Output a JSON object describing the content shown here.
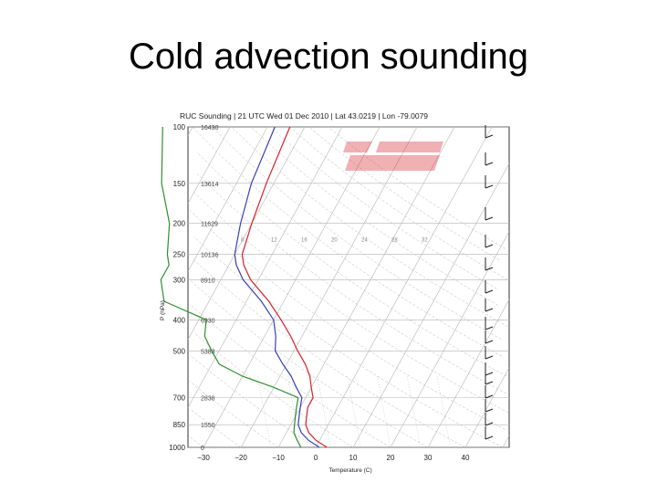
{
  "slide": {
    "title": "Cold advection sounding"
  },
  "chart_data": {
    "type": "line",
    "title": "RUC Sounding | 21 UTC Wed 01 Dec 2010 | Lat 43.0219 | Lon -79.0079",
    "xlabel": "Temperature (C)",
    "ylabel": "P (hPa)",
    "x_ticks": [
      "-30",
      "-20",
      "-10",
      "0",
      "10",
      "20",
      "30",
      "40"
    ],
    "xlim": [
      -32,
      46
    ],
    "ylim": [
      1000,
      100
    ],
    "y_log_scale": true,
    "skew": true,
    "pressure_levels": [
      {
        "p": 100,
        "label": "100",
        "height": "16430"
      },
      {
        "p": 150,
        "label": "150",
        "height": "13614"
      },
      {
        "p": 200,
        "label": "200",
        "height": "11629"
      },
      {
        "p": 250,
        "label": "250",
        "height": "10136"
      },
      {
        "p": 300,
        "label": "300",
        "height": "8910"
      },
      {
        "p": 400,
        "label": "400",
        "height": "6930"
      },
      {
        "p": 500,
        "label": "500",
        "height": "5383"
      },
      {
        "p": 700,
        "label": "700",
        "height": "2838"
      },
      {
        "p": 850,
        "label": "850",
        "height": "1550"
      },
      {
        "p": 1000,
        "label": "1000",
        "height": "0"
      }
    ],
    "mixing_ratio_labels": [
      "8",
      "12",
      "16",
      "20",
      "24",
      "28",
      "32"
    ],
    "series": [
      {
        "color": "#d8202a",
        "points": [
          [
            1000,
            3
          ],
          [
            950,
            -1
          ],
          [
            900,
            -4
          ],
          [
            850,
            -6
          ],
          [
            800,
            -7
          ],
          [
            750,
            -8
          ],
          [
            700,
            -8
          ],
          [
            650,
            -10
          ],
          [
            600,
            -12
          ],
          [
            550,
            -15
          ],
          [
            500,
            -19
          ],
          [
            450,
            -23
          ],
          [
            400,
            -28
          ],
          [
            350,
            -34
          ],
          [
            300,
            -42
          ],
          [
            270,
            -46
          ],
          [
            250,
            -48
          ],
          [
            200,
            -50
          ],
          [
            150,
            -52
          ],
          [
            100,
            -54
          ]
        ]
      },
      {
        "color": "#3a3fb8",
        "points": [
          [
            1000,
            1
          ],
          [
            950,
            -3
          ],
          [
            900,
            -6
          ],
          [
            850,
            -8
          ],
          [
            800,
            -9
          ],
          [
            750,
            -10
          ],
          [
            700,
            -11
          ],
          [
            650,
            -14
          ],
          [
            600,
            -17
          ],
          [
            550,
            -21
          ],
          [
            500,
            -25
          ],
          [
            450,
            -27
          ],
          [
            400,
            -30
          ],
          [
            350,
            -36
          ],
          [
            300,
            -44
          ],
          [
            270,
            -48
          ],
          [
            250,
            -50
          ],
          [
            200,
            -53
          ],
          [
            150,
            -56
          ],
          [
            100,
            -58
          ]
        ]
      },
      {
        "color": "#2f8f2f",
        "points": [
          [
            1000,
            -4
          ],
          [
            950,
            -6
          ],
          [
            900,
            -8
          ],
          [
            850,
            -9
          ],
          [
            800,
            -10
          ],
          [
            750,
            -11
          ],
          [
            700,
            -12
          ],
          [
            650,
            -20
          ],
          [
            600,
            -30
          ],
          [
            550,
            -38
          ],
          [
            500,
            -42
          ],
          [
            450,
            -46
          ],
          [
            400,
            -48
          ],
          [
            350,
            -62
          ],
          [
            300,
            -66
          ],
          [
            270,
            -66
          ],
          [
            250,
            -68
          ],
          [
            200,
            -72
          ],
          [
            150,
            -80
          ],
          [
            100,
            -88
          ]
        ]
      }
    ],
    "colors": {
      "temperature": "#d8202a",
      "virtual_temperature": "#3a3fb8",
      "dewpoint": "#2f8f2f",
      "grid": "#b5b5b5",
      "watermark": "#d8202a"
    }
  }
}
